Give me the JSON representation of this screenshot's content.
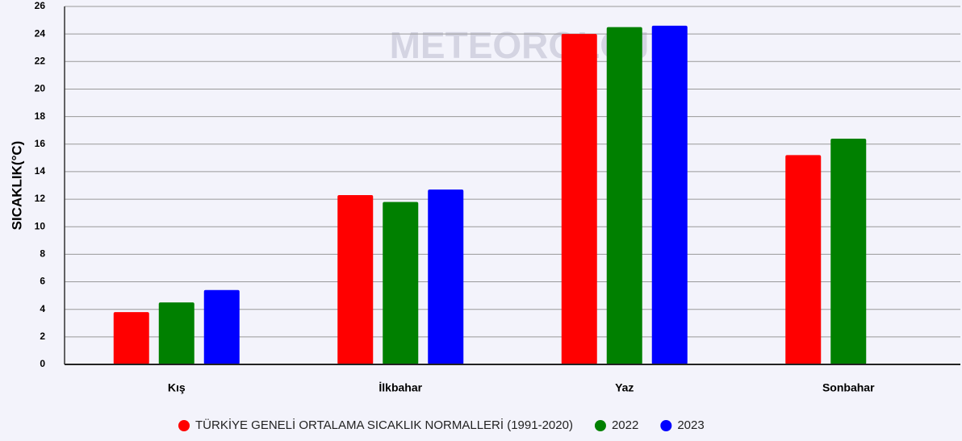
{
  "chart_data": {
    "type": "bar",
    "y_label": "SICAKLIK(°C)",
    "watermark": "METEOROLOJİ",
    "categories": [
      "Kış",
      "İlkbahar",
      "Yaz",
      "Sonbahar"
    ],
    "series": [
      {
        "name": "TÜRKİYE GENELİ ORTALAMA SICAKLIK NORMALLERİ (1991-2020)",
        "color": "#ff0000",
        "values": [
          3.8,
          12.3,
          24.0,
          15.2
        ]
      },
      {
        "name": "2022",
        "color": "#008000",
        "values": [
          4.5,
          11.8,
          24.5,
          16.4
        ]
      },
      {
        "name": "2023",
        "color": "#0000ff",
        "values": [
          5.4,
          12.7,
          24.6,
          null
        ]
      }
    ],
    "ylim": [
      0,
      26
    ],
    "yticks": [
      0,
      2,
      4,
      6,
      8,
      10,
      12,
      14,
      16,
      18,
      20,
      22,
      24,
      26
    ],
    "grid": true,
    "legend": "bottom"
  }
}
